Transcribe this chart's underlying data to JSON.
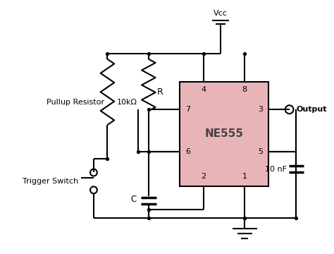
{
  "bg_color": "#ffffff",
  "line_color": "#000000",
  "chip_fill": "#e8b4b8",
  "chip_edge": "#000000",
  "chip_label": "NE555",
  "labels": {
    "vcc": "Vcc",
    "pullup": "Pullup Resistor",
    "r_val": "10kΩ",
    "r_label": "R",
    "c_label": "C",
    "trigger": "Trigger Switch",
    "output": "Output",
    "cap_val": "10 nF",
    "pin4": "4",
    "pin8": "8",
    "pin7": "7",
    "pin3": "3",
    "pin6": "6",
    "pin5": "5",
    "pin2": "2",
    "pin1": "1"
  }
}
